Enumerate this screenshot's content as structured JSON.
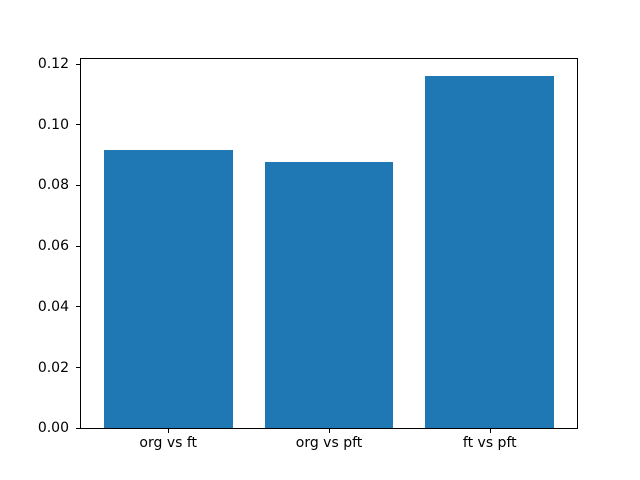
{
  "chart_data": {
    "type": "bar",
    "categories": [
      "org vs ft",
      "org vs pft",
      "ft vs pft"
    ],
    "values": [
      0.0916,
      0.0878,
      0.1161
    ],
    "title": "",
    "xlabel": "",
    "ylabel": "",
    "ylim": [
      0,
      0.1218
    ],
    "xlim": [
      -0.5425,
      2.5425
    ],
    "yticks": [
      0,
      0.02,
      0.04,
      0.06,
      0.08,
      0.1,
      0.12
    ],
    "ytick_labels": [
      "0.00",
      "0.02",
      "0.04",
      "0.06",
      "0.08",
      "0.10",
      "0.12"
    ],
    "bar_width_units": 0.8,
    "bar_color": "#1f77b4",
    "grid": false,
    "legend": null,
    "background_color": "#ffffff",
    "spine_color": "#000000"
  }
}
